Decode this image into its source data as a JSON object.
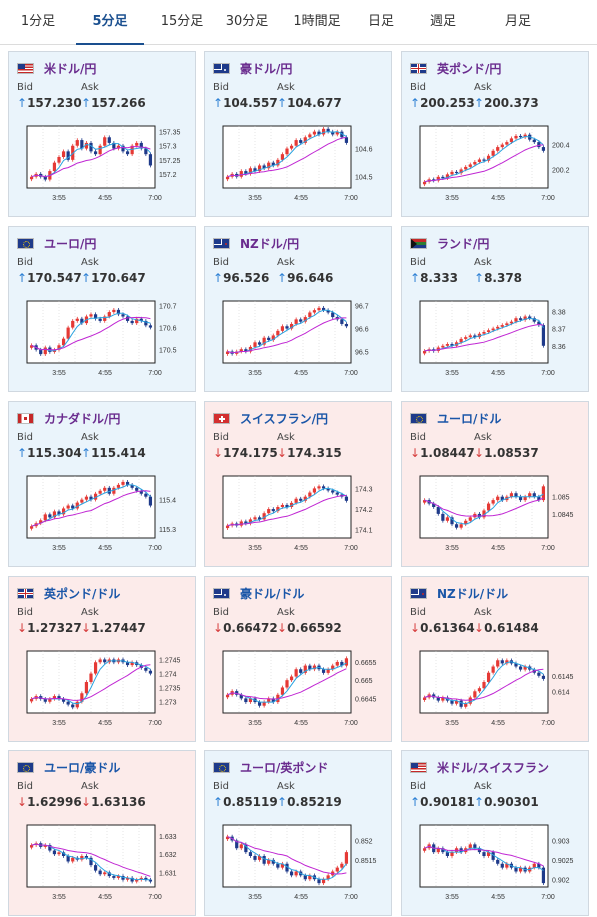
{
  "tabs": [
    "1分足",
    "5分足",
    "15分足",
    "30分足",
    "1時間足",
    "日足",
    "週足",
    "月足"
  ],
  "active_tab": 1,
  "labels": {
    "bid": "Bid",
    "ask": "Ask"
  },
  "arrows": {
    "up": "↑",
    "down": "↓"
  },
  "colors": {
    "up_bg": "#eaf4fb",
    "down_bg": "#fcebea",
    "candle_up": "#e53935",
    "candle_down": "#1e3a8a",
    "ma_fast": "#29a3e0",
    "ma_slow": "#c026d3",
    "title_up": "#6a2c8e",
    "title_down": "#1a56a8"
  },
  "cards": [
    {
      "name": "米ドル/円",
      "flag": "us-jp",
      "dir": "up",
      "bid": "157.230",
      "ask": "157.266",
      "chart_data": {
        "type": "candlestick",
        "x_ticks": [
          "3:55",
          "4:55",
          "7:00"
        ],
        "y_ticks": [
          "157.35",
          "157.3",
          "157.25",
          "157.2"
        ],
        "ylim": [
          157.15,
          157.37
        ],
        "closes": [
          157.19,
          157.2,
          157.19,
          157.18,
          157.21,
          157.24,
          157.26,
          157.28,
          157.25,
          157.3,
          157.32,
          157.29,
          157.31,
          157.28,
          157.27,
          157.3,
          157.33,
          157.31,
          157.29,
          157.3,
          157.28,
          157.27,
          157.3,
          157.31,
          157.29,
          157.27,
          157.23
        ]
      }
    },
    {
      "name": "豪ドル/円",
      "flag": "au-jp",
      "dir": "up",
      "bid": "104.557",
      "ask": "104.677",
      "chart_data": {
        "type": "candlestick",
        "x_ticks": [
          "3:55",
          "4:55",
          "7:00"
        ],
        "y_ticks": [
          "104.6",
          "104.5"
        ],
        "ylim": [
          104.46,
          104.68
        ],
        "closes": [
          104.5,
          104.51,
          104.5,
          104.52,
          104.51,
          104.53,
          104.52,
          104.54,
          104.53,
          104.55,
          104.54,
          104.56,
          104.58,
          104.6,
          104.61,
          104.63,
          104.62,
          104.64,
          104.65,
          104.66,
          104.65,
          104.67,
          104.66,
          104.65,
          104.66,
          104.64,
          104.62
        ]
      }
    },
    {
      "name": "英ポンド/円",
      "flag": "gb-jp",
      "dir": "up",
      "bid": "200.253",
      "ask": "200.373",
      "chart_data": {
        "type": "candlestick",
        "x_ticks": [
          "3:55",
          "4:55",
          "7:00"
        ],
        "y_ticks": [
          "200.4",
          "200.2"
        ],
        "ylim": [
          200.05,
          200.55
        ],
        "closes": [
          200.1,
          200.12,
          200.11,
          200.14,
          200.13,
          200.16,
          200.18,
          200.17,
          200.2,
          200.22,
          200.24,
          200.26,
          200.28,
          200.27,
          200.31,
          200.35,
          200.38,
          200.4,
          200.42,
          200.45,
          200.47,
          200.46,
          200.48,
          200.44,
          200.42,
          200.38,
          200.35
        ]
      }
    },
    {
      "name": "ユーロ/円",
      "flag": "eu-jp",
      "dir": "up",
      "bid": "170.547",
      "ask": "170.647",
      "chart_data": {
        "type": "candlestick",
        "x_ticks": [
          "3:55",
          "4:55",
          "7:00"
        ],
        "y_ticks": [
          "170.7",
          "170.6",
          "170.5"
        ],
        "ylim": [
          170.44,
          170.72
        ],
        "closes": [
          170.52,
          170.5,
          170.48,
          170.51,
          170.49,
          170.5,
          170.52,
          170.55,
          170.6,
          170.63,
          170.64,
          170.62,
          170.65,
          170.66,
          170.64,
          170.63,
          170.65,
          170.67,
          170.68,
          170.66,
          170.65,
          170.63,
          170.62,
          170.64,
          170.63,
          170.61,
          170.6
        ]
      }
    },
    {
      "name": "NZドル/円",
      "flag": "nz-jp",
      "dir": "up",
      "bid": "96.526",
      "ask": "96.646",
      "chart_data": {
        "type": "candlestick",
        "x_ticks": [
          "3:55",
          "4:55",
          "7:00"
        ],
        "y_ticks": [
          "96.7",
          "96.6",
          "96.5"
        ],
        "ylim": [
          96.45,
          96.72
        ],
        "closes": [
          96.5,
          96.49,
          96.5,
          96.51,
          96.5,
          96.52,
          96.54,
          96.53,
          96.56,
          96.55,
          96.57,
          96.59,
          96.61,
          96.6,
          96.62,
          96.64,
          96.63,
          96.65,
          96.67,
          96.68,
          96.69,
          96.68,
          96.67,
          96.65,
          96.64,
          96.62,
          96.61
        ]
      }
    },
    {
      "name": "ランド/円",
      "flag": "za-jp",
      "dir": "up",
      "bid": "8.333",
      "ask": "8.378",
      "chart_data": {
        "type": "candlestick",
        "x_ticks": [
          "3:55",
          "4:55",
          "7:00"
        ],
        "y_ticks": [
          "8.38",
          "8.37",
          "8.36"
        ],
        "ylim": [
          8.35,
          8.386
        ],
        "closes": [
          8.357,
          8.358,
          8.357,
          8.359,
          8.36,
          8.361,
          8.36,
          8.362,
          8.364,
          8.365,
          8.366,
          8.365,
          8.367,
          8.368,
          8.369,
          8.37,
          8.371,
          8.372,
          8.373,
          8.374,
          8.376,
          8.375,
          8.377,
          8.376,
          8.374,
          8.372,
          8.36
        ]
      }
    },
    {
      "name": "カナダドル/円",
      "flag": "ca-jp",
      "dir": "up",
      "bid": "115.304",
      "ask": "115.414",
      "chart_data": {
        "type": "candlestick",
        "x_ticks": [
          "3:55",
          "4:55",
          "7:00"
        ],
        "y_ticks": [
          "115.4",
          "115.3"
        ],
        "ylim": [
          115.27,
          115.48
        ],
        "closes": [
          115.31,
          115.32,
          115.33,
          115.35,
          115.34,
          115.36,
          115.35,
          115.37,
          115.38,
          115.37,
          115.39,
          115.4,
          115.41,
          115.4,
          115.42,
          115.43,
          115.44,
          115.42,
          115.44,
          115.45,
          115.46,
          115.45,
          115.44,
          115.43,
          115.42,
          115.41,
          115.38
        ]
      }
    },
    {
      "name": "スイスフラン/円",
      "flag": "ch-jp",
      "dir": "down",
      "bid": "174.175",
      "ask": "174.315",
      "chart_data": {
        "type": "candlestick",
        "x_ticks": [
          "3:55",
          "4:55",
          "7:00"
        ],
        "y_ticks": [
          "174.3",
          "174.2",
          "174.1"
        ],
        "ylim": [
          174.06,
          174.36
        ],
        "closes": [
          174.12,
          174.13,
          174.12,
          174.14,
          174.13,
          174.15,
          174.16,
          174.15,
          174.18,
          174.2,
          174.19,
          174.21,
          174.22,
          174.21,
          174.23,
          174.25,
          174.24,
          174.26,
          174.28,
          174.3,
          174.31,
          174.3,
          174.29,
          174.28,
          174.27,
          174.26,
          174.24
        ]
      }
    },
    {
      "name": "ユーロ/ドル",
      "flag": "eu-us",
      "dir": "down",
      "bid": "1.08447",
      "ask": "1.08537",
      "chart_data": {
        "type": "candlestick",
        "x_ticks": [
          "3:55",
          "4:55",
          "7:00"
        ],
        "y_ticks": [
          "1.085",
          "1.0845"
        ],
        "ylim": [
          1.0838,
          1.0856
        ],
        "closes": [
          1.0849,
          1.0848,
          1.0847,
          1.0845,
          1.0843,
          1.0844,
          1.0842,
          1.0841,
          1.0842,
          1.0843,
          1.0844,
          1.0845,
          1.0844,
          1.0846,
          1.0848,
          1.0849,
          1.085,
          1.0849,
          1.085,
          1.0851,
          1.085,
          1.0849,
          1.085,
          1.0851,
          1.085,
          1.0849,
          1.0853
        ]
      }
    },
    {
      "name": "英ポンド/ドル",
      "flag": "gb-us",
      "dir": "down",
      "bid": "1.27327",
      "ask": "1.27447",
      "chart_data": {
        "type": "candlestick",
        "x_ticks": [
          "3:55",
          "4:55",
          "7:00"
        ],
        "y_ticks": [
          "1.2745",
          "1.274",
          "1.2735",
          "1.273"
        ],
        "ylim": [
          1.2726,
          1.2748
        ],
        "closes": [
          1.2731,
          1.2732,
          1.2731,
          1.273,
          1.2731,
          1.2732,
          1.2731,
          1.273,
          1.2729,
          1.2728,
          1.273,
          1.2733,
          1.2737,
          1.274,
          1.2744,
          1.2745,
          1.2744,
          1.2745,
          1.2744,
          1.2745,
          1.2744,
          1.2743,
          1.2744,
          1.2743,
          1.2742,
          1.2741,
          1.274
        ]
      }
    },
    {
      "name": "豪ドル/ドル",
      "flag": "au-us",
      "dir": "down",
      "bid": "0.66472",
      "ask": "0.66592",
      "chart_data": {
        "type": "candlestick",
        "x_ticks": [
          "3:55",
          "4:55",
          "7:00"
        ],
        "y_ticks": [
          "0.6655",
          "0.665",
          "0.6645"
        ],
        "ylim": [
          0.6641,
          0.6658
        ],
        "closes": [
          0.6646,
          0.6647,
          0.6646,
          0.6645,
          0.6644,
          0.6645,
          0.6644,
          0.6643,
          0.6644,
          0.6645,
          0.6644,
          0.6646,
          0.6648,
          0.665,
          0.6651,
          0.6653,
          0.6652,
          0.6654,
          0.6653,
          0.6654,
          0.6653,
          0.6652,
          0.6653,
          0.6654,
          0.6655,
          0.6654,
          0.6656
        ]
      }
    },
    {
      "name": "NZドル/ドル",
      "flag": "nz-us",
      "dir": "down",
      "bid": "0.61364",
      "ask": "0.61484",
      "chart_data": {
        "type": "candlestick",
        "x_ticks": [
          "3:55",
          "4:55",
          "7:00"
        ],
        "y_ticks": [
          "0.6145",
          "0.614"
        ],
        "ylim": [
          0.6133,
          0.6153
        ],
        "closes": [
          0.6138,
          0.6139,
          0.6138,
          0.6137,
          0.6138,
          0.6137,
          0.6136,
          0.6137,
          0.6135,
          0.6136,
          0.6138,
          0.614,
          0.6141,
          0.6143,
          0.6146,
          0.6148,
          0.615,
          0.6149,
          0.615,
          0.6149,
          0.6148,
          0.6147,
          0.6148,
          0.6147,
          0.6146,
          0.6145,
          0.6144
        ]
      }
    },
    {
      "name": "ユーロ/豪ドル",
      "flag": "eu-au",
      "dir": "down",
      "bid": "1.62996",
      "ask": "1.63136",
      "chart_data": {
        "type": "candlestick",
        "x_ticks": [
          "3:55",
          "4:55",
          "7:00"
        ],
        "y_ticks": [
          "1.633",
          "1.632",
          "1.631"
        ],
        "ylim": [
          1.6302,
          1.6336
        ],
        "closes": [
          1.6325,
          1.6326,
          1.6324,
          1.6325,
          1.6322,
          1.632,
          1.6321,
          1.6319,
          1.6316,
          1.6318,
          1.6317,
          1.6319,
          1.6318,
          1.6314,
          1.6311,
          1.6309,
          1.631,
          1.6308,
          1.6307,
          1.6308,
          1.6306,
          1.6307,
          1.6305,
          1.6306,
          1.6307,
          1.6306,
          1.6305
        ]
      }
    },
    {
      "name": "ユーロ/英ポンド",
      "flag": "eu-gb",
      "dir": "up",
      "bid": "0.85119",
      "ask": "0.85219",
      "chart_data": {
        "type": "candlestick",
        "x_ticks": [
          "3:55",
          "4:55",
          "7:00"
        ],
        "y_ticks": [
          "0.852",
          "0.8515"
        ],
        "ylim": [
          0.8508,
          0.8524
        ],
        "closes": [
          0.8521,
          0.852,
          0.8518,
          0.8519,
          0.8517,
          0.8516,
          0.8515,
          0.8516,
          0.8514,
          0.8515,
          0.8514,
          0.8513,
          0.8514,
          0.8512,
          0.8511,
          0.8512,
          0.8511,
          0.851,
          0.8511,
          0.851,
          0.8509,
          0.851,
          0.8511,
          0.8512,
          0.8513,
          0.8514,
          0.8517
        ]
      }
    },
    {
      "name": "米ドル/スイスフラン",
      "flag": "us-ch",
      "dir": "up",
      "bid": "0.90181",
      "ask": "0.90301",
      "chart_data": {
        "type": "candlestick",
        "x_ticks": [
          "3:55",
          "4:55",
          "7:00"
        ],
        "y_ticks": [
          "0.903",
          "0.9025",
          "0.902"
        ],
        "ylim": [
          0.9018,
          0.9034
        ],
        "closes": [
          0.9028,
          0.9029,
          0.9027,
          0.9028,
          0.9027,
          0.9026,
          0.9027,
          0.9028,
          0.9027,
          0.9028,
          0.9029,
          0.9028,
          0.9027,
          0.9026,
          0.9027,
          0.9025,
          0.9024,
          0.9023,
          0.9024,
          0.9023,
          0.9022,
          0.9023,
          0.9022,
          0.9023,
          0.9024,
          0.9023,
          0.9019
        ]
      }
    }
  ]
}
